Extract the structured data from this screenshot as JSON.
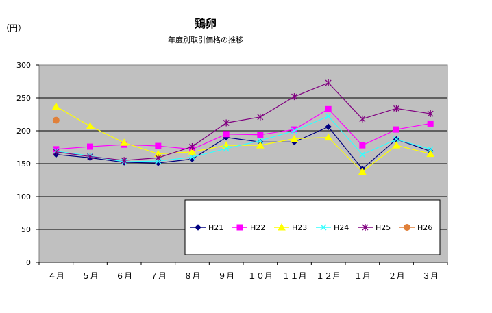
{
  "chart_data": {
    "type": "line",
    "title": "鶏卵",
    "subtitle": "年度別取引価格の推移",
    "ylabel": "（円）",
    "xlabel": "",
    "ylim": [
      0,
      300
    ],
    "yticks": [
      0,
      50,
      100,
      150,
      200,
      250,
      300
    ],
    "categories": [
      "４月",
      "５月",
      "６月",
      "７月",
      "８月",
      "９月",
      "１０月",
      "１１月",
      "１２月",
      "１月",
      "２月",
      "３月"
    ],
    "grid": true,
    "legend_position": "bottom-right-inside",
    "series": [
      {
        "name": "H21",
        "color": "#000080",
        "marker": "diamond",
        "values": [
          164,
          159,
          152,
          151,
          157,
          190,
          183,
          183,
          206,
          142,
          187,
          169
        ]
      },
      {
        "name": "H22",
        "color": "#ff00ff",
        "marker": "square",
        "values": [
          172,
          176,
          179,
          177,
          172,
          195,
          194,
          202,
          233,
          178,
          202,
          211
        ]
      },
      {
        "name": "H23",
        "color": "#ffff00",
        "marker": "triangle",
        "values": [
          237,
          207,
          182,
          165,
          168,
          178,
          178,
          188,
          190,
          138,
          178,
          165
        ]
      },
      {
        "name": "H24",
        "color": "#33ffff",
        "marker": "x",
        "values": [
          169,
          162,
          153,
          154,
          160,
          173,
          185,
          200,
          222,
          164,
          187,
          172
        ]
      },
      {
        "name": "H25",
        "color": "#800080",
        "marker": "star",
        "values": [
          168,
          161,
          155,
          159,
          176,
          212,
          221,
          252,
          273,
          218,
          234,
          226
        ]
      },
      {
        "name": "H26",
        "color": "#e0803a",
        "marker": "circle",
        "values": [
          216,
          null,
          null,
          null,
          null,
          null,
          null,
          null,
          null,
          null,
          null,
          null
        ]
      }
    ]
  }
}
